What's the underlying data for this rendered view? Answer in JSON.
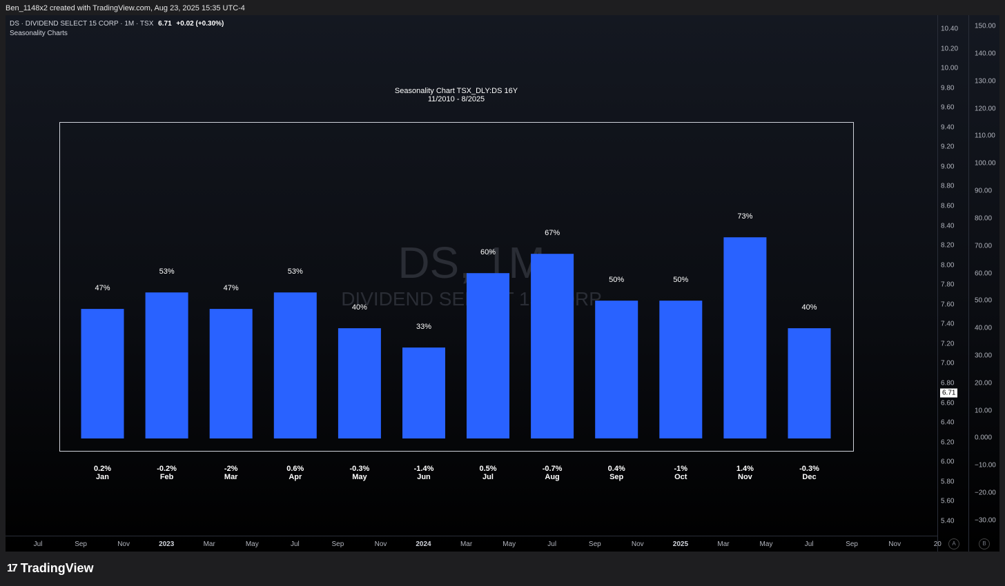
{
  "header": {
    "credit": "Ben_1148x2 created with TradingView.com, Aug 23, 2025 15:35 UTC-4"
  },
  "legend": {
    "symbol": "DS · DIVIDEND SELECT 15 CORP · 1M · TSX",
    "price": "6.71",
    "change": "+0.02 (+0.30%)"
  },
  "indicator": {
    "name": "Seasonality Charts"
  },
  "watermark": {
    "line1": "DS, 1M",
    "line2": "DIVIDEND SELECT 15 CORP"
  },
  "right_axis": {
    "labels": [
      "150.00",
      "140.00",
      "130.00",
      "120.00",
      "110.00",
      "100.00",
      "90.00",
      "80.00",
      "70.00",
      "60.00",
      "50.00",
      "40.00",
      "30.00",
      "20.00",
      "10.00",
      "0.000",
      "−10.00",
      "−20.00",
      "−30.00"
    ]
  },
  "left_axis": {
    "labels": [
      "10.40",
      "10.20",
      "10.00",
      "9.80",
      "9.60",
      "9.40",
      "9.20",
      "9.00",
      "8.80",
      "8.60",
      "8.40",
      "8.20",
      "8.00",
      "7.80",
      "7.60",
      "7.40",
      "7.20",
      "7.00",
      "6.80",
      "6.60",
      "6.40",
      "6.20",
      "6.00",
      "5.80",
      "5.60",
      "5.40"
    ],
    "current_price": "6.71"
  },
  "time_axis": {
    "labels": [
      {
        "text": "Jul",
        "bold": false
      },
      {
        "text": "Sep",
        "bold": false
      },
      {
        "text": "Nov",
        "bold": false
      },
      {
        "text": "2023",
        "bold": true
      },
      {
        "text": "Mar",
        "bold": false
      },
      {
        "text": "May",
        "bold": false
      },
      {
        "text": "Jul",
        "bold": false
      },
      {
        "text": "Sep",
        "bold": false
      },
      {
        "text": "Nov",
        "bold": false
      },
      {
        "text": "2024",
        "bold": true
      },
      {
        "text": "Mar",
        "bold": false
      },
      {
        "text": "May",
        "bold": false
      },
      {
        "text": "Jul",
        "bold": false
      },
      {
        "text": "Sep",
        "bold": false
      },
      {
        "text": "Nov",
        "bold": false
      },
      {
        "text": "2025",
        "bold": true
      },
      {
        "text": "Mar",
        "bold": false
      },
      {
        "text": "May",
        "bold": false
      },
      {
        "text": "Jul",
        "bold": false
      },
      {
        "text": "Sep",
        "bold": false
      },
      {
        "text": "Nov",
        "bold": false
      },
      {
        "text": "20",
        "bold": false
      }
    ],
    "btn_a": "A",
    "btn_b": "B"
  },
  "footer": {
    "brand": "TradingView",
    "logo_mark": "17"
  },
  "chart_data": {
    "type": "bar",
    "title": "Seasonality Chart TSX_DLY:DS 16Y",
    "subtitle": "11/2010 - 8/2025",
    "categories": [
      "Jan",
      "Feb",
      "Mar",
      "Apr",
      "May",
      "Jun",
      "Jul",
      "Aug",
      "Sep",
      "Oct",
      "Nov",
      "Dec"
    ],
    "values": [
      47,
      53,
      47,
      53,
      40,
      33,
      60,
      67,
      50,
      50,
      73,
      40
    ],
    "bar_labels": [
      "47%",
      "53%",
      "47%",
      "53%",
      "40%",
      "33%",
      "60%",
      "67%",
      "50%",
      "50%",
      "73%",
      "40%"
    ],
    "avg_returns": [
      "0.2%",
      "-0.2%",
      "-2%",
      "0.6%",
      "-0.3%",
      "-1.4%",
      "0.5%",
      "-0.7%",
      "0.4%",
      "-1%",
      "1.4%",
      "-0.3%"
    ],
    "ylim": [
      -30,
      150
    ],
    "bar_color": "#2962ff",
    "frame_color": "#d1d4dc"
  }
}
